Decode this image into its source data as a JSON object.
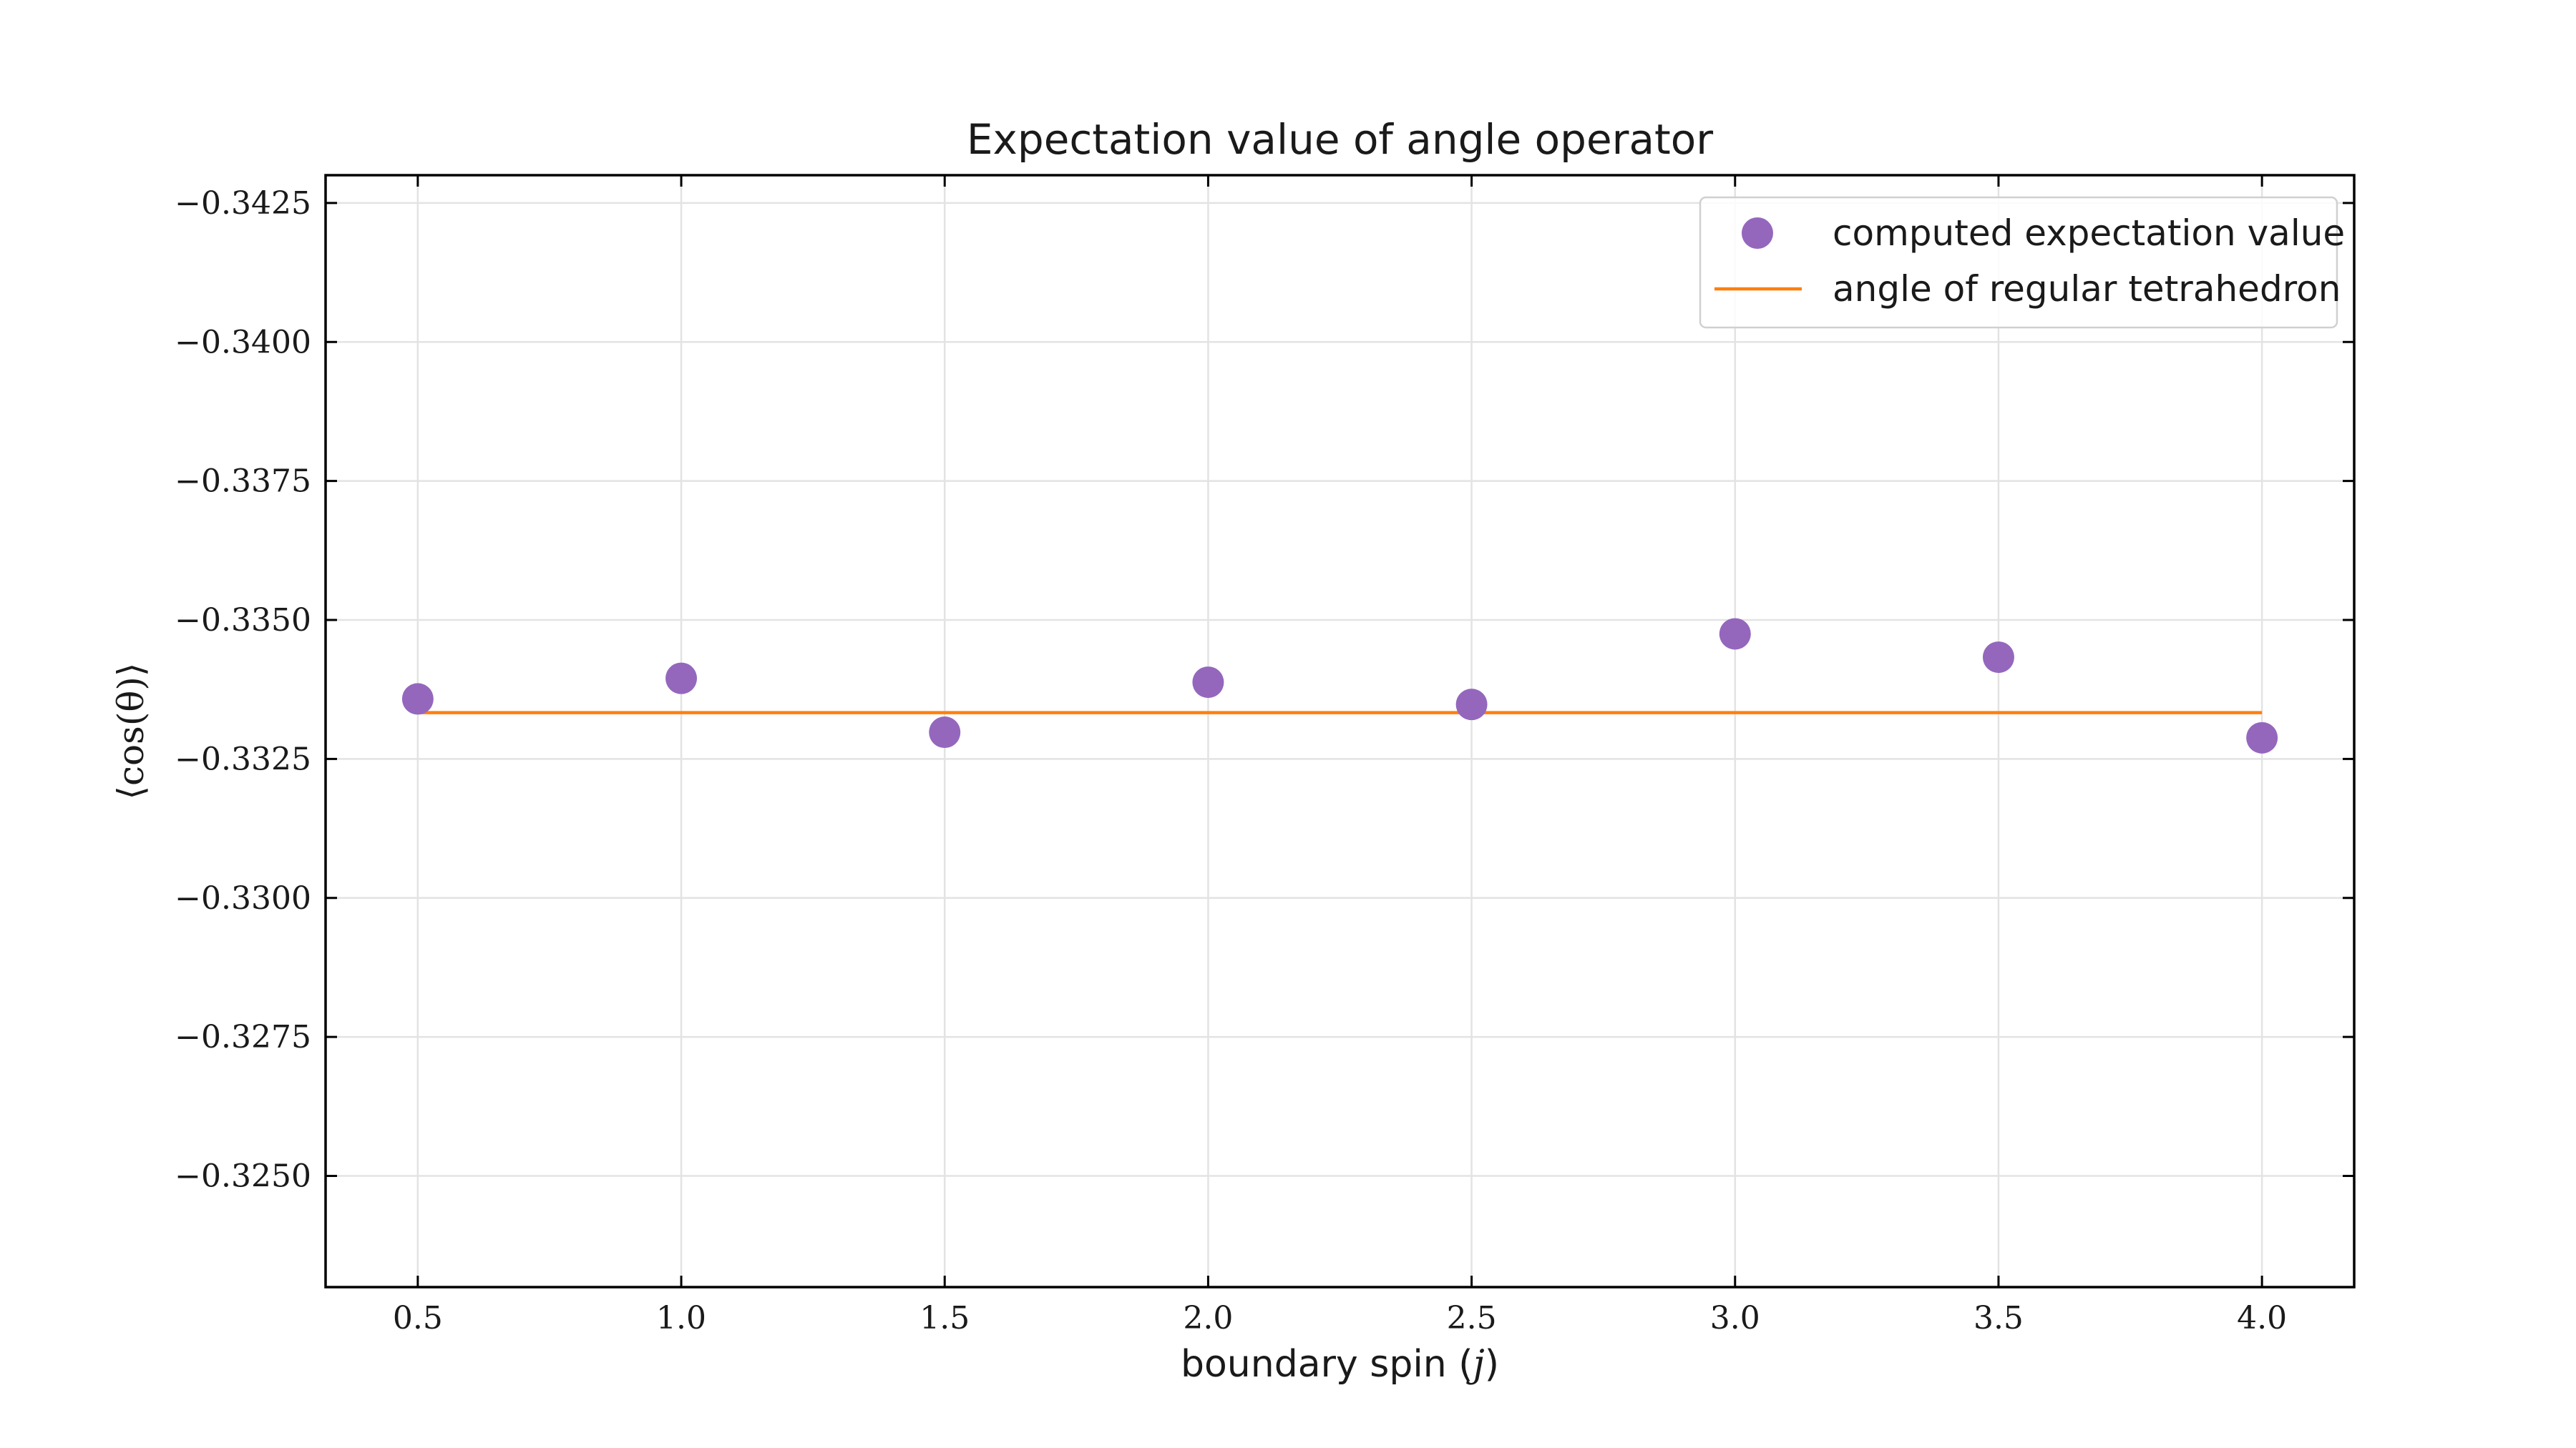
{
  "chart_data": {
    "type": "scatter",
    "title": "Expectation value of angle operator",
    "xlabel_prefix": "boundary spin (",
    "xlabel_var": "j",
    "xlabel_suffix": ")",
    "ylabel": "⟨cos(θ)⟩",
    "xlim": [
      0.325,
      4.175
    ],
    "ylim": [
      -0.323,
      -0.343
    ],
    "x_ticks": [
      0.5,
      1.0,
      1.5,
      2.0,
      2.5,
      3.0,
      3.5,
      4.0
    ],
    "x_tick_labels": [
      "0.5",
      "1.0",
      "1.5",
      "2.0",
      "2.5",
      "3.0",
      "3.5",
      "4.0"
    ],
    "y_ticks": [
      -0.3425,
      -0.34,
      -0.3375,
      -0.335,
      -0.3325,
      -0.33,
      -0.3275,
      -0.325
    ],
    "y_tick_labels": [
      "−0.3425",
      "−0.3400",
      "−0.3375",
      "−0.3350",
      "−0.3325",
      "−0.3300",
      "−0.3275",
      "−0.3250"
    ],
    "grid": true,
    "legend_placement": "top-right",
    "series": [
      {
        "name": "computed expectation value",
        "kind": "scatter",
        "color": "#9467bd",
        "x": [
          0.5,
          1.0,
          1.5,
          2.0,
          2.5,
          3.0,
          3.5,
          4.0
        ],
        "y": [
          -0.33358,
          -0.33395,
          -0.33298,
          -0.33388,
          -0.33348,
          -0.33475,
          -0.33433,
          -0.33288
        ]
      },
      {
        "name": "angle of regular tetrahedron",
        "kind": "line",
        "color": "#ff7f0e",
        "x": [
          0.5,
          4.0
        ],
        "y": [
          -0.333333,
          -0.333333
        ]
      }
    ]
  }
}
